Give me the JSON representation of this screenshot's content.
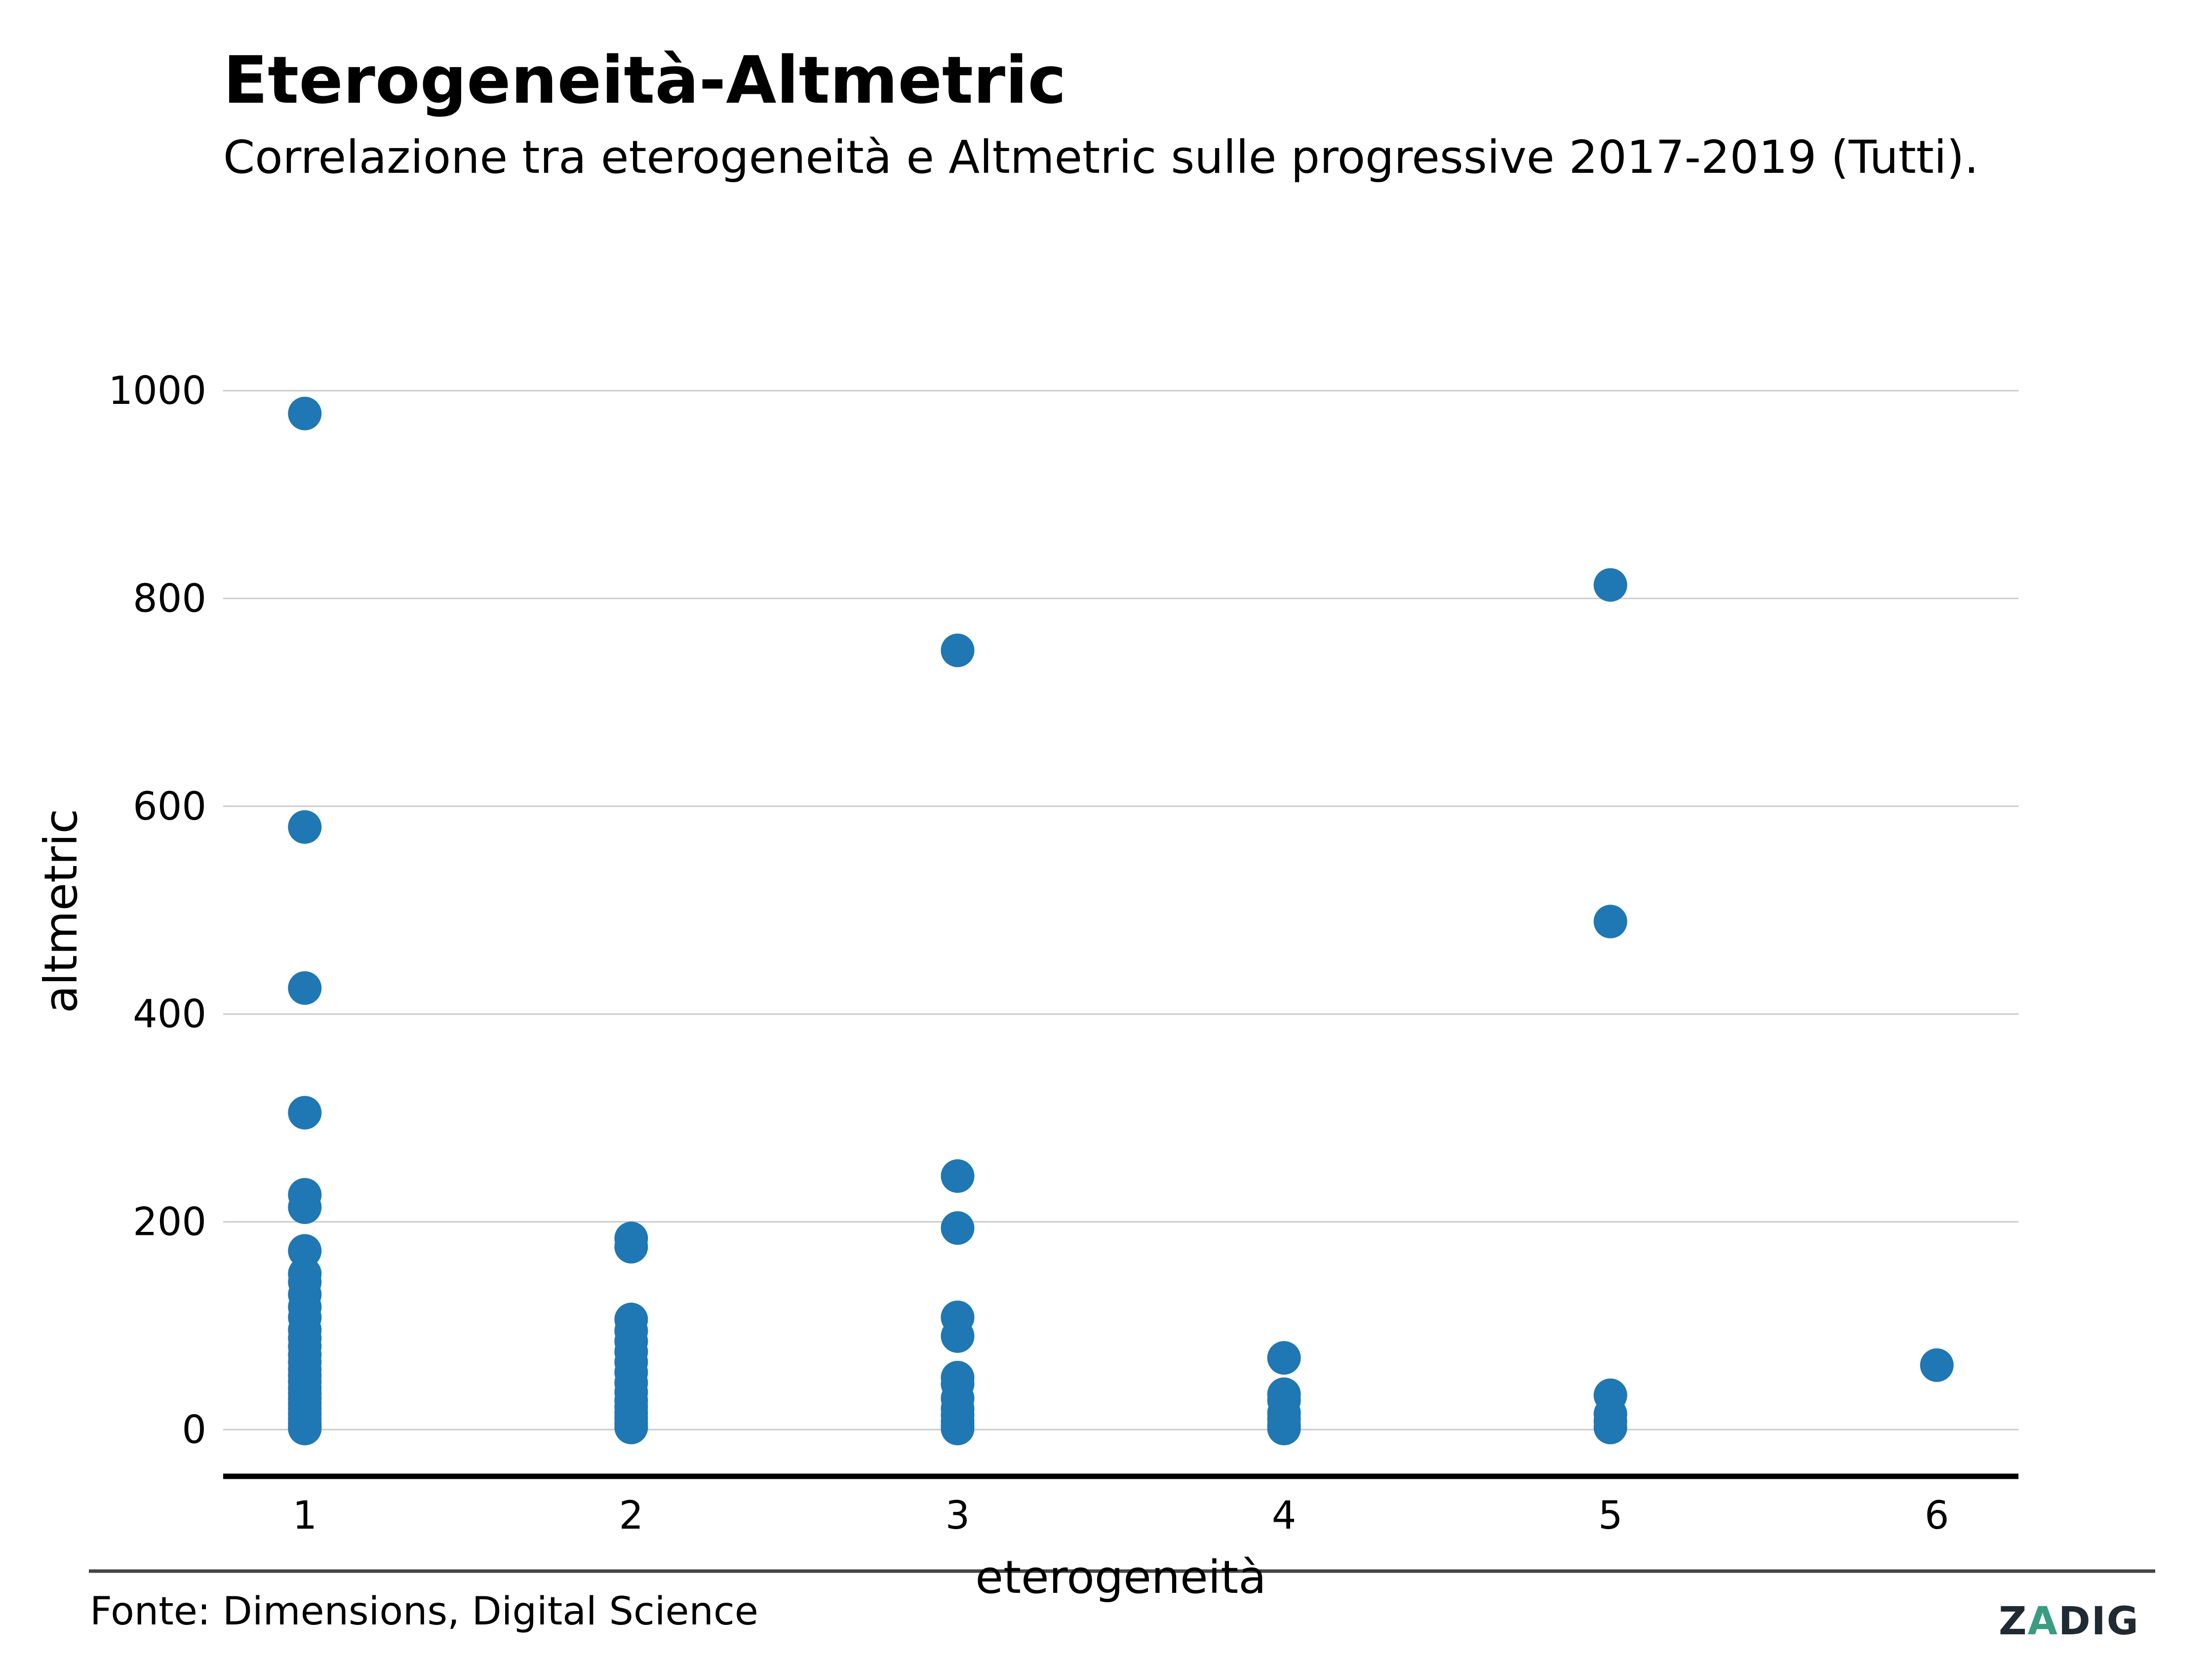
{
  "chart_data": {
    "type": "scatter",
    "title": "Eterogeneità-Altmetric",
    "subtitle": "Correlazione tra eterogeneità e Altmetric  sulle progressive 2017-2019 (Tutti).",
    "xlabel": "eterogeneità",
    "ylabel": "altmetric",
    "xlim": [
      0.75,
      6.25
    ],
    "ylim": [
      -45,
      1060
    ],
    "xticks": [
      1,
      2,
      3,
      4,
      5,
      6
    ],
    "yticks": [
      0,
      200,
      400,
      600,
      800,
      1000
    ],
    "grid": "horizontal",
    "point_color": "#1f77b4",
    "points": [
      [
        1,
        978
      ],
      [
        1,
        580
      ],
      [
        1,
        425
      ],
      [
        1,
        305
      ],
      [
        1,
        226
      ],
      [
        1,
        214
      ],
      [
        1,
        172
      ],
      [
        1,
        150
      ],
      [
        1,
        142
      ],
      [
        1,
        130
      ],
      [
        1,
        118
      ],
      [
        1,
        108
      ],
      [
        1,
        96
      ],
      [
        1,
        88
      ],
      [
        1,
        80
      ],
      [
        1,
        72
      ],
      [
        1,
        65
      ],
      [
        1,
        58
      ],
      [
        1,
        52
      ],
      [
        1,
        46
      ],
      [
        1,
        40
      ],
      [
        1,
        35
      ],
      [
        1,
        30
      ],
      [
        1,
        25
      ],
      [
        1,
        20
      ],
      [
        1,
        15
      ],
      [
        1,
        10
      ],
      [
        1,
        6
      ],
      [
        1,
        3
      ],
      [
        1,
        1
      ],
      [
        2,
        184
      ],
      [
        2,
        176
      ],
      [
        2,
        106
      ],
      [
        2,
        95
      ],
      [
        2,
        85
      ],
      [
        2,
        75
      ],
      [
        2,
        65
      ],
      [
        2,
        55
      ],
      [
        2,
        45
      ],
      [
        2,
        36
      ],
      [
        2,
        28
      ],
      [
        2,
        22
      ],
      [
        2,
        16
      ],
      [
        2,
        11
      ],
      [
        2,
        6
      ],
      [
        2,
        2
      ],
      [
        3,
        750
      ],
      [
        3,
        244
      ],
      [
        3,
        194
      ],
      [
        3,
        108
      ],
      [
        3,
        90
      ],
      [
        3,
        50
      ],
      [
        3,
        44
      ],
      [
        3,
        30
      ],
      [
        3,
        20
      ],
      [
        3,
        14
      ],
      [
        3,
        8
      ],
      [
        3,
        4
      ],
      [
        3,
        1
      ],
      [
        4,
        69
      ],
      [
        4,
        34
      ],
      [
        4,
        28
      ],
      [
        4,
        16
      ],
      [
        4,
        10
      ],
      [
        4,
        4
      ],
      [
        4,
        1
      ],
      [
        5,
        813
      ],
      [
        5,
        489
      ],
      [
        5,
        33
      ],
      [
        5,
        15
      ],
      [
        5,
        8
      ],
      [
        5,
        2
      ],
      [
        6,
        62
      ]
    ],
    "source": "Fonte: Dimensions, Digital Science",
    "logo_text": "ZADIG"
  }
}
